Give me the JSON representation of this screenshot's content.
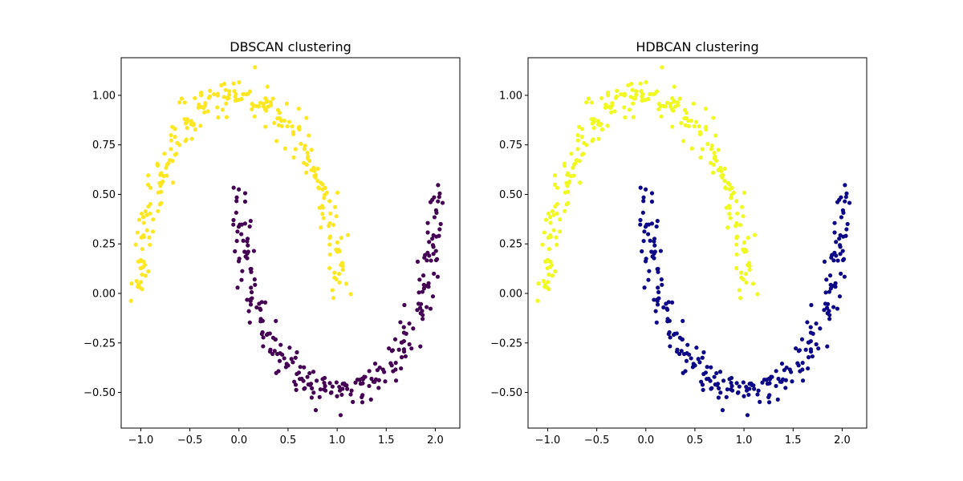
{
  "figure": {
    "background": "#ffffff"
  },
  "chart_data": [
    {
      "type": "scatter",
      "title": "DBSCAN clustering",
      "xlim": [
        -1.2,
        2.25
      ],
      "ylim": [
        -0.68,
        1.19
      ],
      "xticks": [
        "−1.0",
        "−0.5",
        "0.0",
        "0.5",
        "1.0",
        "1.5",
        "2.0"
      ],
      "xtick_values": [
        -1.0,
        -0.5,
        0.0,
        0.5,
        1.0,
        1.5,
        2.0
      ],
      "yticks": [
        "−0.50",
        "−0.25",
        "0.00",
        "0.25",
        "0.50",
        "0.75",
        "1.00"
      ],
      "ytick_values": [
        -0.5,
        -0.25,
        0.0,
        0.25,
        0.5,
        0.75,
        1.0
      ],
      "series": [
        {
          "color": "#fde725"
        },
        {
          "color": "#440154"
        }
      ]
    },
    {
      "type": "scatter",
      "title": "HDBCAN clustering",
      "xlim": [
        -1.2,
        2.25
      ],
      "ylim": [
        -0.68,
        1.19
      ],
      "xticks": [
        "−1.0",
        "−0.5",
        "0.0",
        "0.5",
        "1.0",
        "1.5",
        "2.0"
      ],
      "xtick_values": [
        -1.0,
        -0.5,
        0.0,
        0.5,
        1.0,
        1.5,
        2.0
      ],
      "yticks": [
        "−0.50",
        "−0.25",
        "0.00",
        "0.25",
        "0.50",
        "0.75",
        "1.00"
      ],
      "ytick_values": [
        -0.5,
        -0.25,
        0.0,
        0.25,
        0.5,
        0.75,
        1.0
      ],
      "series": [
        {
          "color": "#f0f921"
        },
        {
          "color": "#0d0887"
        }
      ]
    }
  ]
}
